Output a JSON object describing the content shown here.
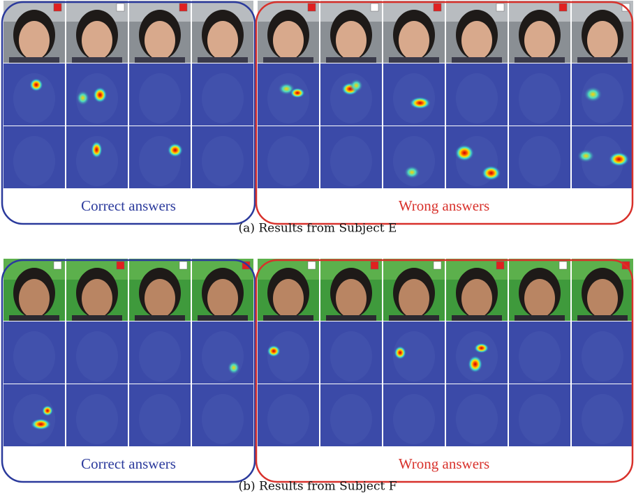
{
  "panels": [
    {
      "groups": [
        "Correct answers",
        "Wrong answers"
      ],
      "caption": "(a) Results from Subject E"
    },
    {
      "groups": [
        "Correct answers",
        "Wrong answers"
      ],
      "caption": "(b) Results from Subject F"
    }
  ]
}
